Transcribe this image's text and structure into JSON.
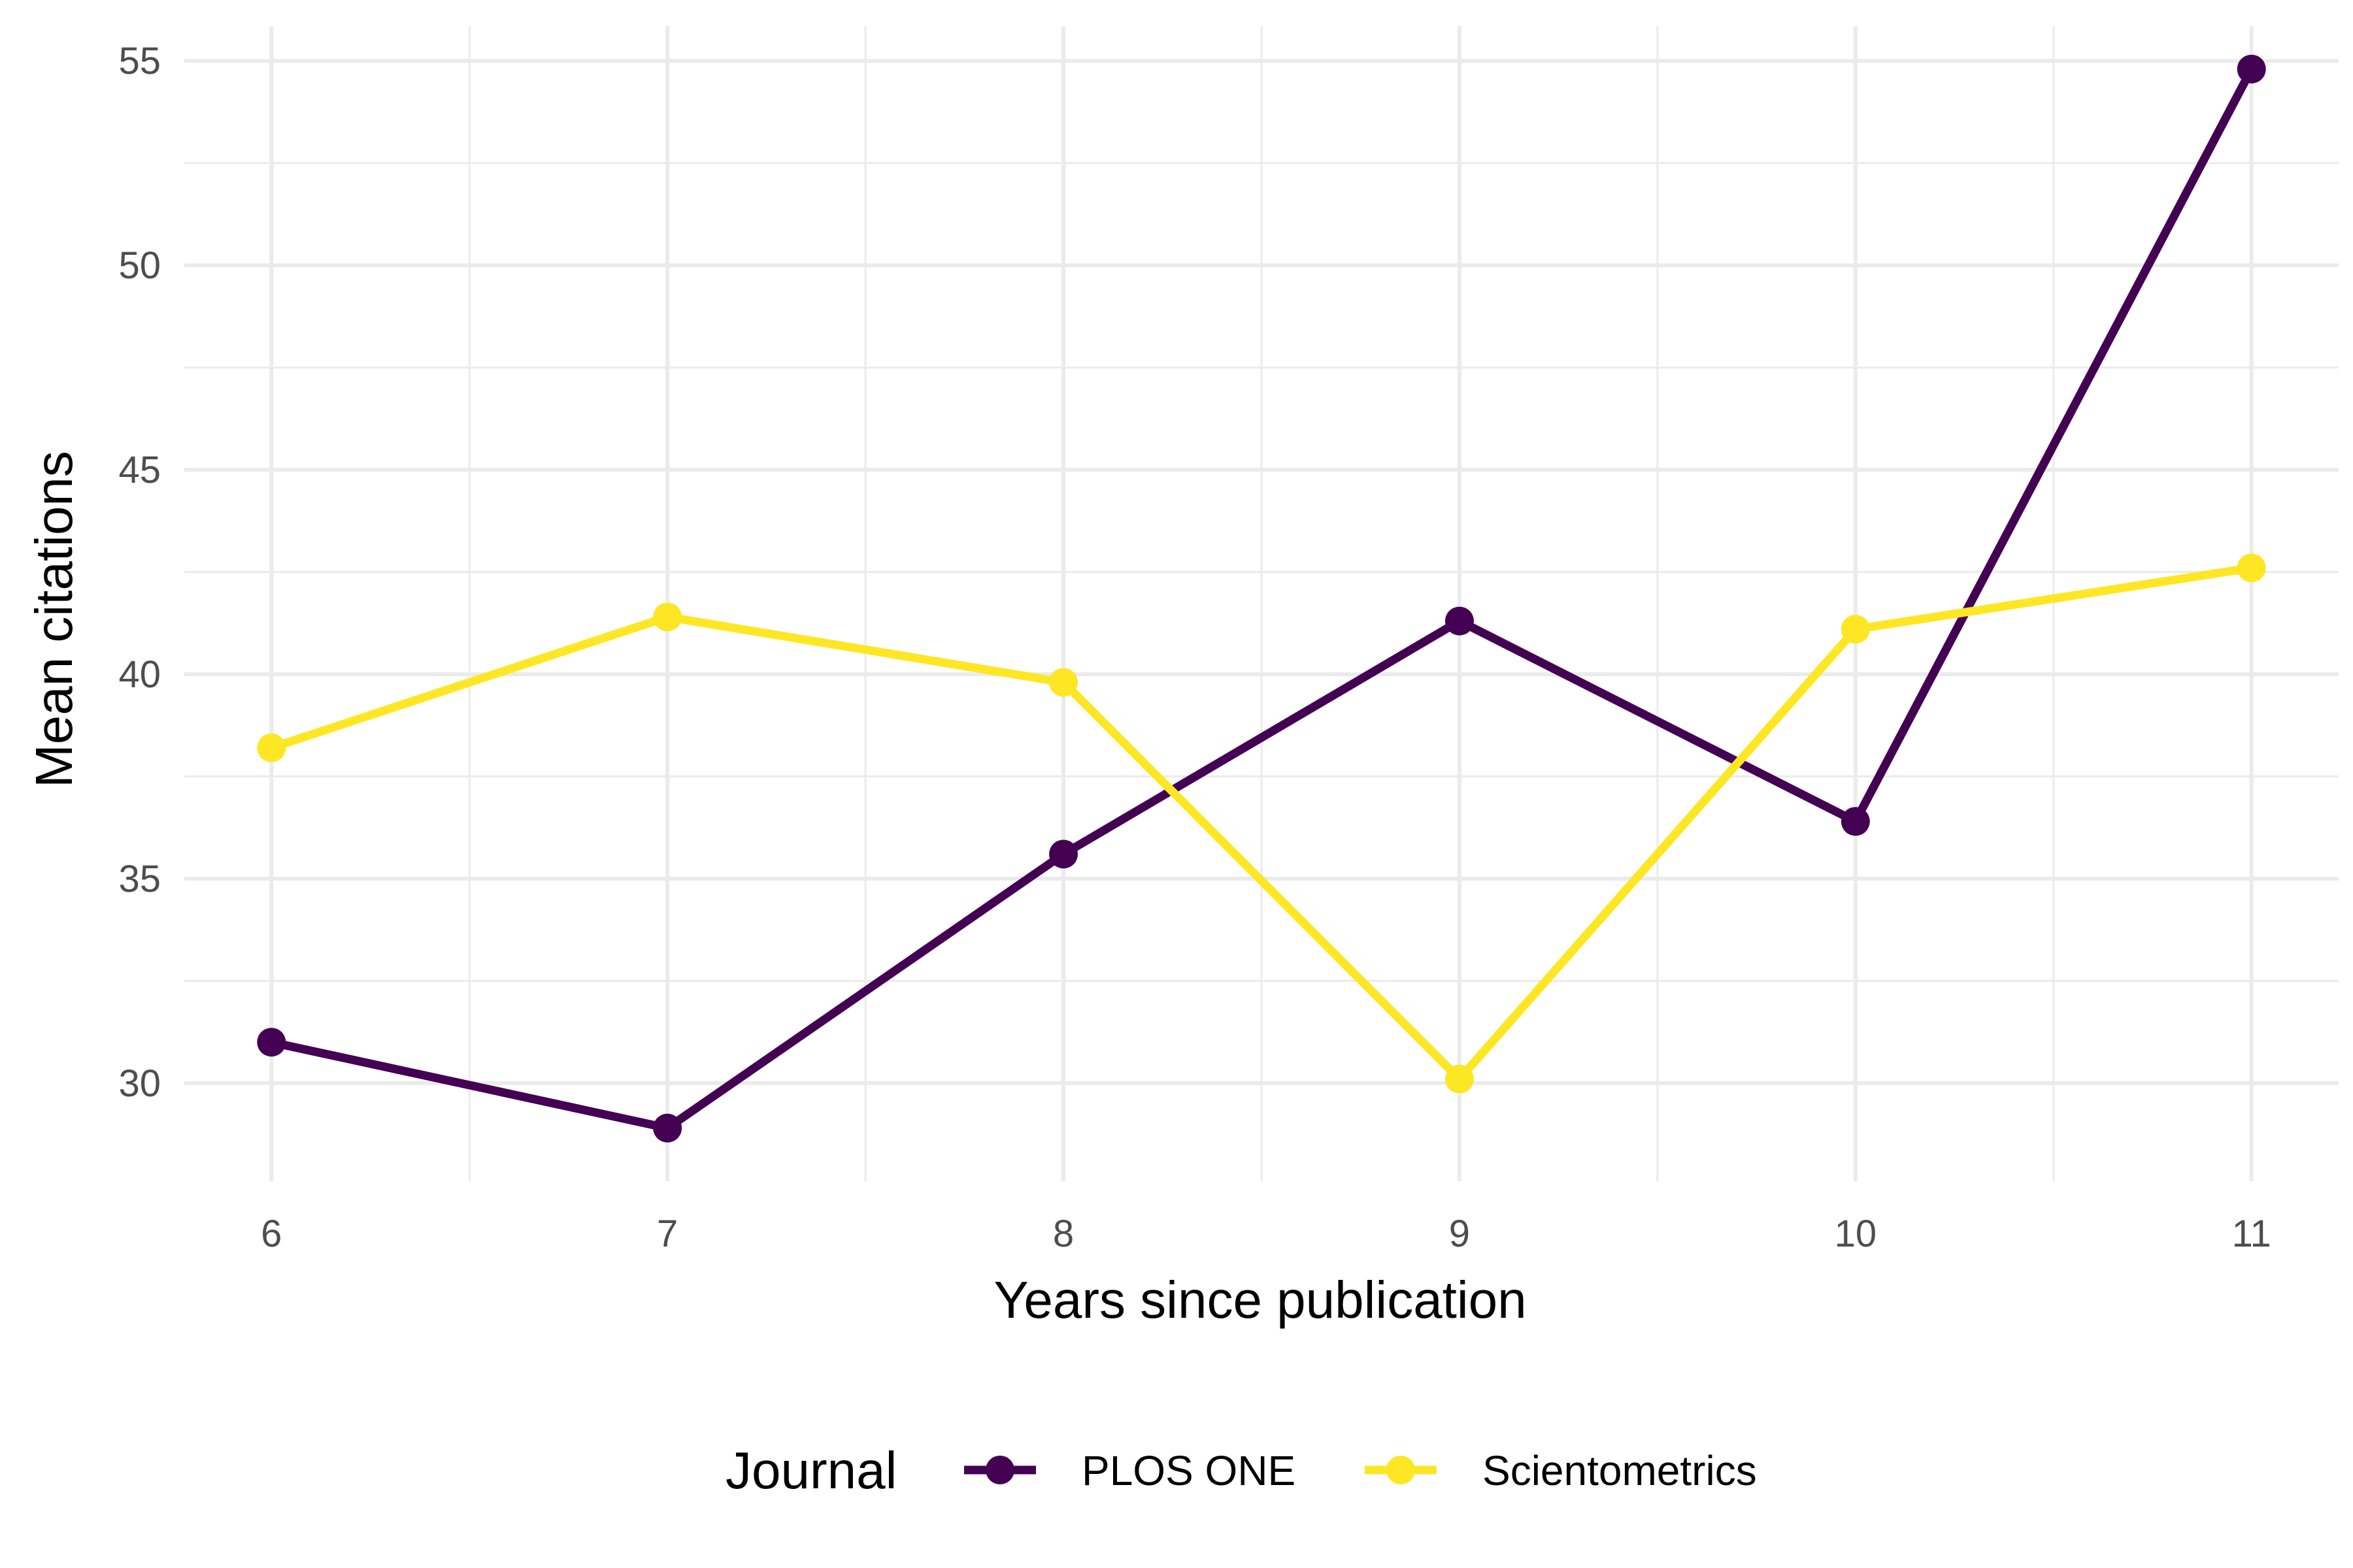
{
  "chart_data": {
    "type": "line",
    "title": "",
    "xlabel": "Years since publication",
    "ylabel": "Mean citations",
    "x": [
      6,
      7,
      8,
      9,
      10,
      11
    ],
    "xticks": [
      "6",
      "7",
      "8",
      "9",
      "10",
      "11"
    ],
    "yticks": [
      "30",
      "35",
      "40",
      "45",
      "50",
      "55"
    ],
    "xlim": [
      5.78,
      11.22
    ],
    "ylim": [
      27.6,
      55.85
    ],
    "grid": true,
    "legend": {
      "title": "Journal",
      "position": "bottom"
    },
    "series": [
      {
        "name": "PLOS ONE",
        "color": "#440154",
        "values": [
          31.0,
          28.9,
          35.6,
          41.3,
          36.4,
          54.8
        ]
      },
      {
        "name": "Scientometrics",
        "color": "#FDE725",
        "values": [
          38.2,
          41.4,
          39.8,
          30.1,
          41.1,
          42.6
        ]
      }
    ]
  }
}
